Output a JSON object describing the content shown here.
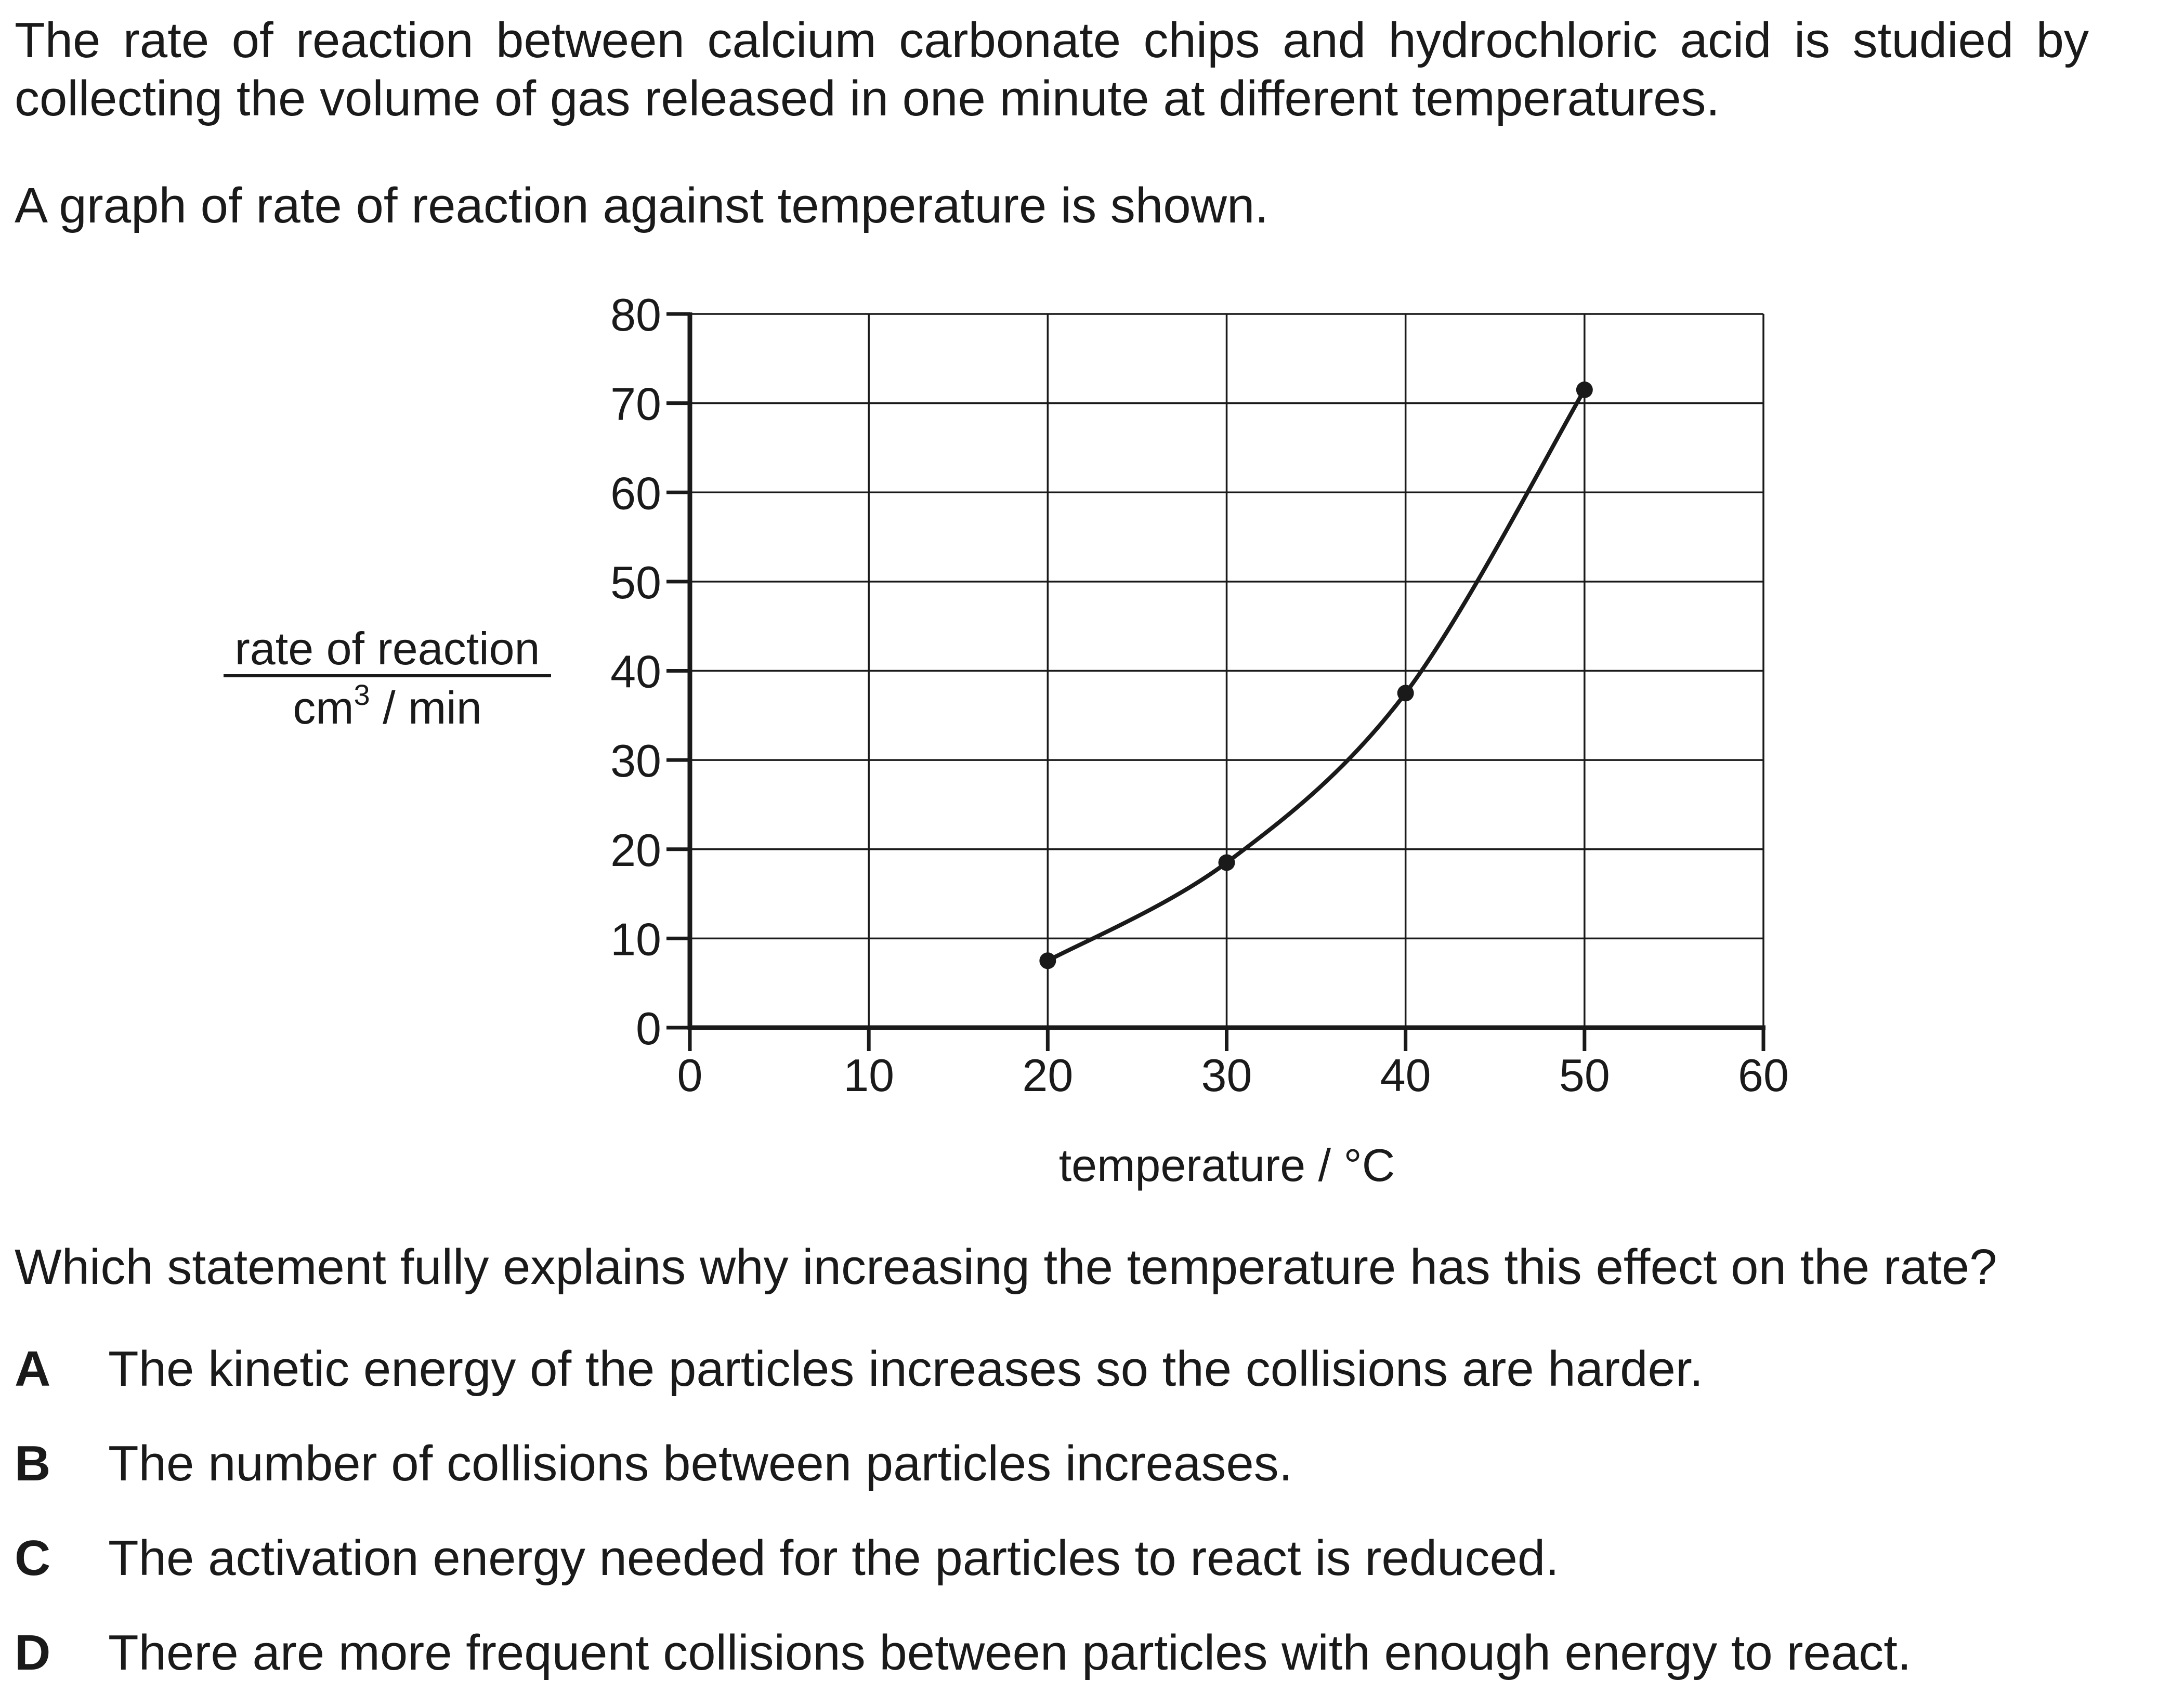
{
  "intro": "The rate of reaction between calcium carbonate chips and hydrochloric acid is studied by collecting the volume of gas released in one minute at different temperatures.",
  "graph_intro": "A graph of rate of reaction against temperature is shown.",
  "question": "Which statement fully explains why increasing the temperature has this effect on the rate?",
  "options": [
    {
      "letter": "A",
      "text": "The kinetic energy of the particles increases so the collisions are harder."
    },
    {
      "letter": "B",
      "text": "The number of collisions between particles increases."
    },
    {
      "letter": "C",
      "text": "The activation energy needed for the particles to react is reduced."
    },
    {
      "letter": "D",
      "text": "There are more frequent collisions between particles with enough energy to react."
    }
  ],
  "chart_data": {
    "type": "line",
    "title": "",
    "xlabel": "temperature / °C",
    "ylabel_top": "rate of reaction",
    "ylabel_bottom_base": "cm",
    "ylabel_bottom_sup": "3",
    "ylabel_bottom_rest": " / min",
    "xlim": [
      0,
      60
    ],
    "ylim": [
      0,
      80
    ],
    "x_ticks": [
      0,
      10,
      20,
      30,
      40,
      50,
      60
    ],
    "y_ticks": [
      0,
      10,
      20,
      30,
      40,
      50,
      60,
      70,
      80
    ],
    "grid": true,
    "legend": "none",
    "series": [
      {
        "x": [
          20,
          30,
          40,
          50
        ],
        "values": [
          7.5,
          18.5,
          37.5,
          71.5
        ]
      }
    ]
  }
}
